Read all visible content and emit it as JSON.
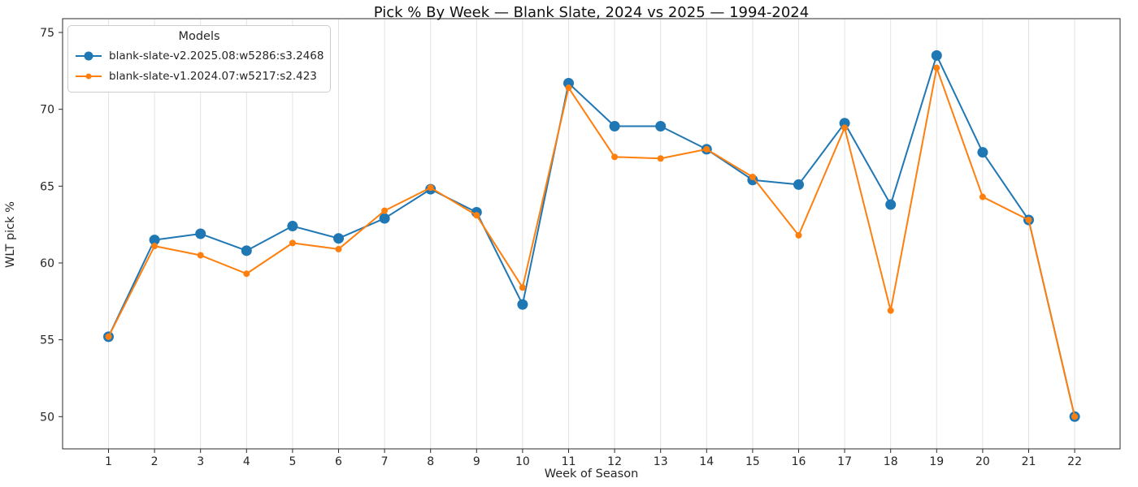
{
  "chart_data": {
    "type": "line",
    "title": "Pick % By Week — Blank Slate, 2024 vs 2025 — 1994-2024",
    "xlabel": "Week of Season",
    "ylabel": "WLT pick %",
    "x": [
      1,
      2,
      3,
      4,
      5,
      6,
      7,
      8,
      9,
      10,
      11,
      12,
      13,
      14,
      15,
      16,
      17,
      18,
      19,
      20,
      21,
      22
    ],
    "x_tick_labels": [
      "1",
      "2",
      "3",
      "4",
      "5",
      "6",
      "7",
      "8",
      "9",
      "10",
      "11",
      "12",
      "13",
      "14",
      "15",
      "16",
      "17",
      "18",
      "19",
      "20",
      "21",
      "22"
    ],
    "y_ticks": [
      50,
      55,
      60,
      65,
      70,
      75
    ],
    "y_tick_labels": [
      "50",
      "55",
      "60",
      "65",
      "70",
      "75"
    ],
    "ylim": [
      47.9,
      75.9
    ],
    "grid": "vertical-only",
    "legend": {
      "title": "Models",
      "position": "upper-left"
    },
    "series": [
      {
        "name": "blank-slate-v2.2025.08:w5286:s3.2468",
        "color": "#1f77b4",
        "marker": "circle-large",
        "values": [
          55.2,
          61.5,
          61.9,
          60.8,
          62.4,
          61.6,
          62.9,
          64.8,
          63.3,
          57.3,
          71.7,
          68.9,
          68.9,
          67.4,
          65.4,
          65.1,
          69.1,
          63.8,
          73.5,
          67.2,
          62.8,
          50.0
        ]
      },
      {
        "name": "blank-slate-v1.2024.07:w5217:s2.423",
        "color": "#ff7f0e",
        "marker": "circle-small",
        "values": [
          55.2,
          61.1,
          60.5,
          59.3,
          61.3,
          60.9,
          63.4,
          64.9,
          63.1,
          58.4,
          71.4,
          66.9,
          66.8,
          67.4,
          65.6,
          61.8,
          68.8,
          56.9,
          72.7,
          64.3,
          62.8,
          50.0
        ]
      }
    ],
    "style": {
      "grid_color": "#e3e3e3",
      "spine_color": "#2b2b2b",
      "tick_color": "#2b2b2b",
      "text_color": "#262626",
      "background": "#ffffff"
    }
  }
}
